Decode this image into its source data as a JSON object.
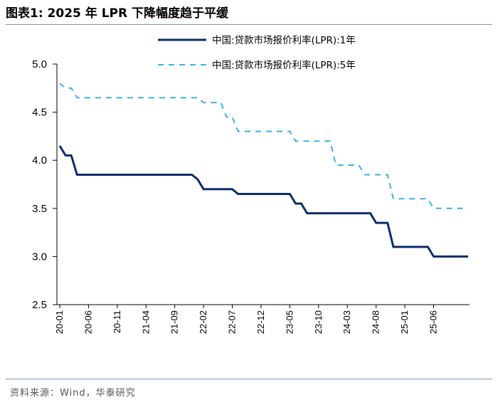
{
  "header": {
    "title": "图表1:  2025 年 LPR 下降幅度趋于平缓"
  },
  "footer": {
    "source": "资料来源：Wind，华泰研究"
  },
  "colors": {
    "series_1y": "#0b2d6b",
    "series_5y": "#3bb0e6",
    "axis": "#000000",
    "rule": "#7f93b4"
  },
  "chart_data": {
    "type": "line",
    "title": "2025 年 LPR 下降幅度趋于平缓",
    "xlabel": "",
    "ylabel": "",
    "ylim": [
      2.5,
      5.0
    ],
    "yticks": [
      "5.0",
      "4.5",
      "4.0",
      "3.5",
      "3.0",
      "2.5"
    ],
    "x_start": "2020-01",
    "x_end": "2025-12",
    "xticks": [
      "20-01",
      "20-06",
      "20-11",
      "21-04",
      "21-09",
      "22-02",
      "22-07",
      "22-12",
      "23-05",
      "23-10",
      "24-03",
      "24-08",
      "25-01",
      "25-06"
    ],
    "xtick_month_index": [
      0,
      5,
      10,
      15,
      20,
      25,
      30,
      35,
      40,
      45,
      50,
      55,
      60,
      65
    ],
    "legend_position": "top-right",
    "series": [
      {
        "name": "中国:贷款市场报价利率(LPR):1年",
        "style": "solid",
        "points": [
          [
            0,
            4.15
          ],
          [
            1,
            4.05
          ],
          [
            2,
            4.05
          ],
          [
            3,
            3.85
          ],
          [
            4,
            3.85
          ],
          [
            23,
            3.85
          ],
          [
            24,
            3.8
          ],
          [
            25,
            3.7
          ],
          [
            30,
            3.7
          ],
          [
            31,
            3.65
          ],
          [
            40,
            3.65
          ],
          [
            41,
            3.55
          ],
          [
            42,
            3.55
          ],
          [
            43,
            3.45
          ],
          [
            54,
            3.45
          ],
          [
            55,
            3.35
          ],
          [
            57,
            3.35
          ],
          [
            58,
            3.1
          ],
          [
            64,
            3.1
          ],
          [
            65,
            3.0
          ],
          [
            71,
            3.0
          ]
        ]
      },
      {
        "name": "中国:贷款市场报价利率(LPR):5年",
        "style": "dashed",
        "points": [
          [
            0,
            4.8
          ],
          [
            1,
            4.75
          ],
          [
            2,
            4.75
          ],
          [
            3,
            4.65
          ],
          [
            4,
            4.65
          ],
          [
            24,
            4.65
          ],
          [
            25,
            4.6
          ],
          [
            28,
            4.6
          ],
          [
            29,
            4.45
          ],
          [
            30,
            4.45
          ],
          [
            31,
            4.3
          ],
          [
            40,
            4.3
          ],
          [
            41,
            4.2
          ],
          [
            47,
            4.2
          ],
          [
            48,
            3.95
          ],
          [
            52,
            3.95
          ],
          [
            53,
            3.85
          ],
          [
            57,
            3.85
          ],
          [
            58,
            3.6
          ],
          [
            64,
            3.6
          ],
          [
            65,
            3.5
          ],
          [
            71,
            3.5
          ]
        ]
      }
    ]
  }
}
